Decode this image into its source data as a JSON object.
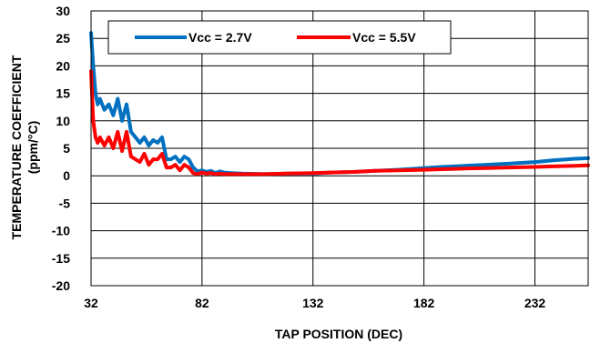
{
  "chart_data": {
    "type": "line",
    "xlabel": "TAP POSITION (DEC)",
    "ylabel_line1": "TEMPERATURE COEFFICIENT",
    "ylabel_line2": "(ppm/°C)",
    "xlim": [
      32,
      256
    ],
    "ylim": [
      -20,
      30
    ],
    "xticks": [
      32,
      82,
      132,
      182,
      232
    ],
    "yticks": [
      30,
      25,
      20,
      15,
      10,
      5,
      0,
      -5,
      -10,
      -15,
      -20
    ],
    "grid": true,
    "legend_position": "top",
    "series": [
      {
        "name": "Vcc = 2.7V",
        "color": "#0070C0",
        "x": [
          32,
          33,
          34,
          35,
          36,
          38,
          40,
          42,
          44,
          46,
          48,
          50,
          52,
          54,
          56,
          58,
          60,
          62,
          64,
          66,
          68,
          70,
          72,
          74,
          76,
          78,
          80,
          82,
          84,
          86,
          88,
          90,
          92,
          95,
          100,
          110,
          120,
          132,
          140,
          150,
          160,
          170,
          182,
          190,
          200,
          210,
          220,
          232,
          240,
          250,
          256
        ],
        "y": [
          26,
          20,
          15,
          13,
          14,
          12,
          13,
          11,
          14,
          10,
          13,
          8,
          7,
          6,
          7,
          5.5,
          6.5,
          6,
          7,
          3,
          3,
          3.5,
          2.5,
          3.5,
          3,
          1.5,
          0.8,
          1,
          0.7,
          0.9,
          0.5,
          0.8,
          0.6,
          0.5,
          0.4,
          0.3,
          0.4,
          0.4,
          0.6,
          0.7,
          0.9,
          1.1,
          1.4,
          1.6,
          1.8,
          2.0,
          2.2,
          2.5,
          2.8,
          3.1,
          3.2
        ]
      },
      {
        "name": "Vcc = 5.5V",
        "color": "#FF0000",
        "x": [
          32,
          33,
          34,
          35,
          36,
          38,
          40,
          42,
          44,
          46,
          48,
          50,
          52,
          54,
          56,
          58,
          60,
          62,
          64,
          66,
          68,
          70,
          72,
          74,
          76,
          78,
          80,
          82,
          84,
          86,
          88,
          90,
          92,
          95,
          100,
          110,
          120,
          132,
          140,
          150,
          160,
          170,
          182,
          190,
          200,
          210,
          220,
          232,
          240,
          250,
          256
        ],
        "y": [
          19,
          10,
          7,
          6,
          7,
          5.5,
          7,
          5,
          8,
          4.5,
          8,
          3.5,
          3,
          2.5,
          4,
          2,
          3,
          3,
          4,
          1.5,
          1.5,
          2,
          1,
          2,
          1.5,
          0.5,
          0.3,
          0.6,
          0.4,
          0.5,
          0.3,
          0.4,
          0.3,
          0.3,
          0.3,
          0.3,
          0.4,
          0.5,
          0.6,
          0.7,
          0.9,
          1.0,
          1.1,
          1.2,
          1.3,
          1.4,
          1.5,
          1.6,
          1.7,
          1.8,
          1.9
        ]
      }
    ]
  }
}
